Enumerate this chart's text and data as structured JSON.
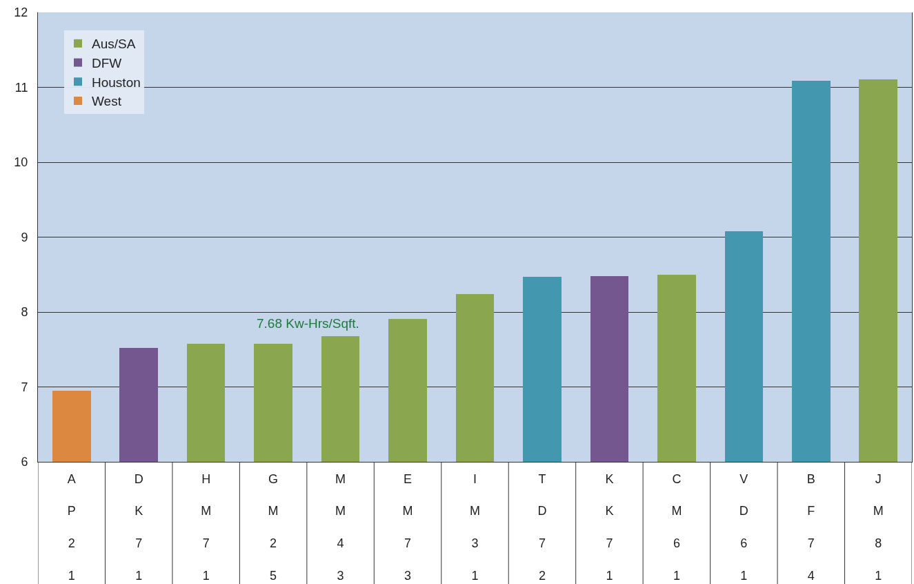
{
  "chart_data": {
    "type": "bar",
    "stacked": true,
    "categories": [
      "A\nP\n2\n1",
      "D\nK\n7\n1",
      "H\nM\n7\n1",
      "G\nM\n2\n5",
      "M\nM\n4\n3",
      "E\nM\n7\n3",
      "I\nM\n3\n1",
      "T\nD\n7\n2",
      "K\nK\n7\n1",
      "C\nM\n6\n1",
      "V\nD\n6\n1",
      "B\nF\n7\n4",
      "J\nM\n8\n1"
    ],
    "series": [
      {
        "name": "Aus/SA",
        "color": "#8aa64e",
        "values": [
          null,
          null,
          7.58,
          7.58,
          7.68,
          7.91,
          8.24,
          null,
          null,
          8.5,
          null,
          null,
          11.11
        ]
      },
      {
        "name": "DFW",
        "color": "#74578f",
        "values": [
          null,
          7.52,
          null,
          null,
          null,
          null,
          null,
          null,
          8.48,
          null,
          null,
          null,
          null
        ]
      },
      {
        "name": "Houston",
        "color": "#4398b0",
        "values": [
          null,
          null,
          null,
          null,
          null,
          null,
          null,
          8.47,
          null,
          null,
          9.08,
          11.09,
          null
        ]
      },
      {
        "name": "West",
        "color": "#dd8840",
        "values": [
          6.95,
          null,
          null,
          null,
          null,
          null,
          null,
          null,
          null,
          null,
          null,
          null,
          null
        ]
      }
    ],
    "ylim": [
      6,
      12
    ],
    "yticks": [
      6,
      7,
      8,
      9,
      10,
      11,
      12
    ],
    "grid": "y",
    "legend": "top left",
    "annotations": [
      {
        "text": "7.68 Kw-Hrs/Sqft.",
        "x": "M\nM\n4\n3",
        "y": 7.68
      }
    ]
  }
}
